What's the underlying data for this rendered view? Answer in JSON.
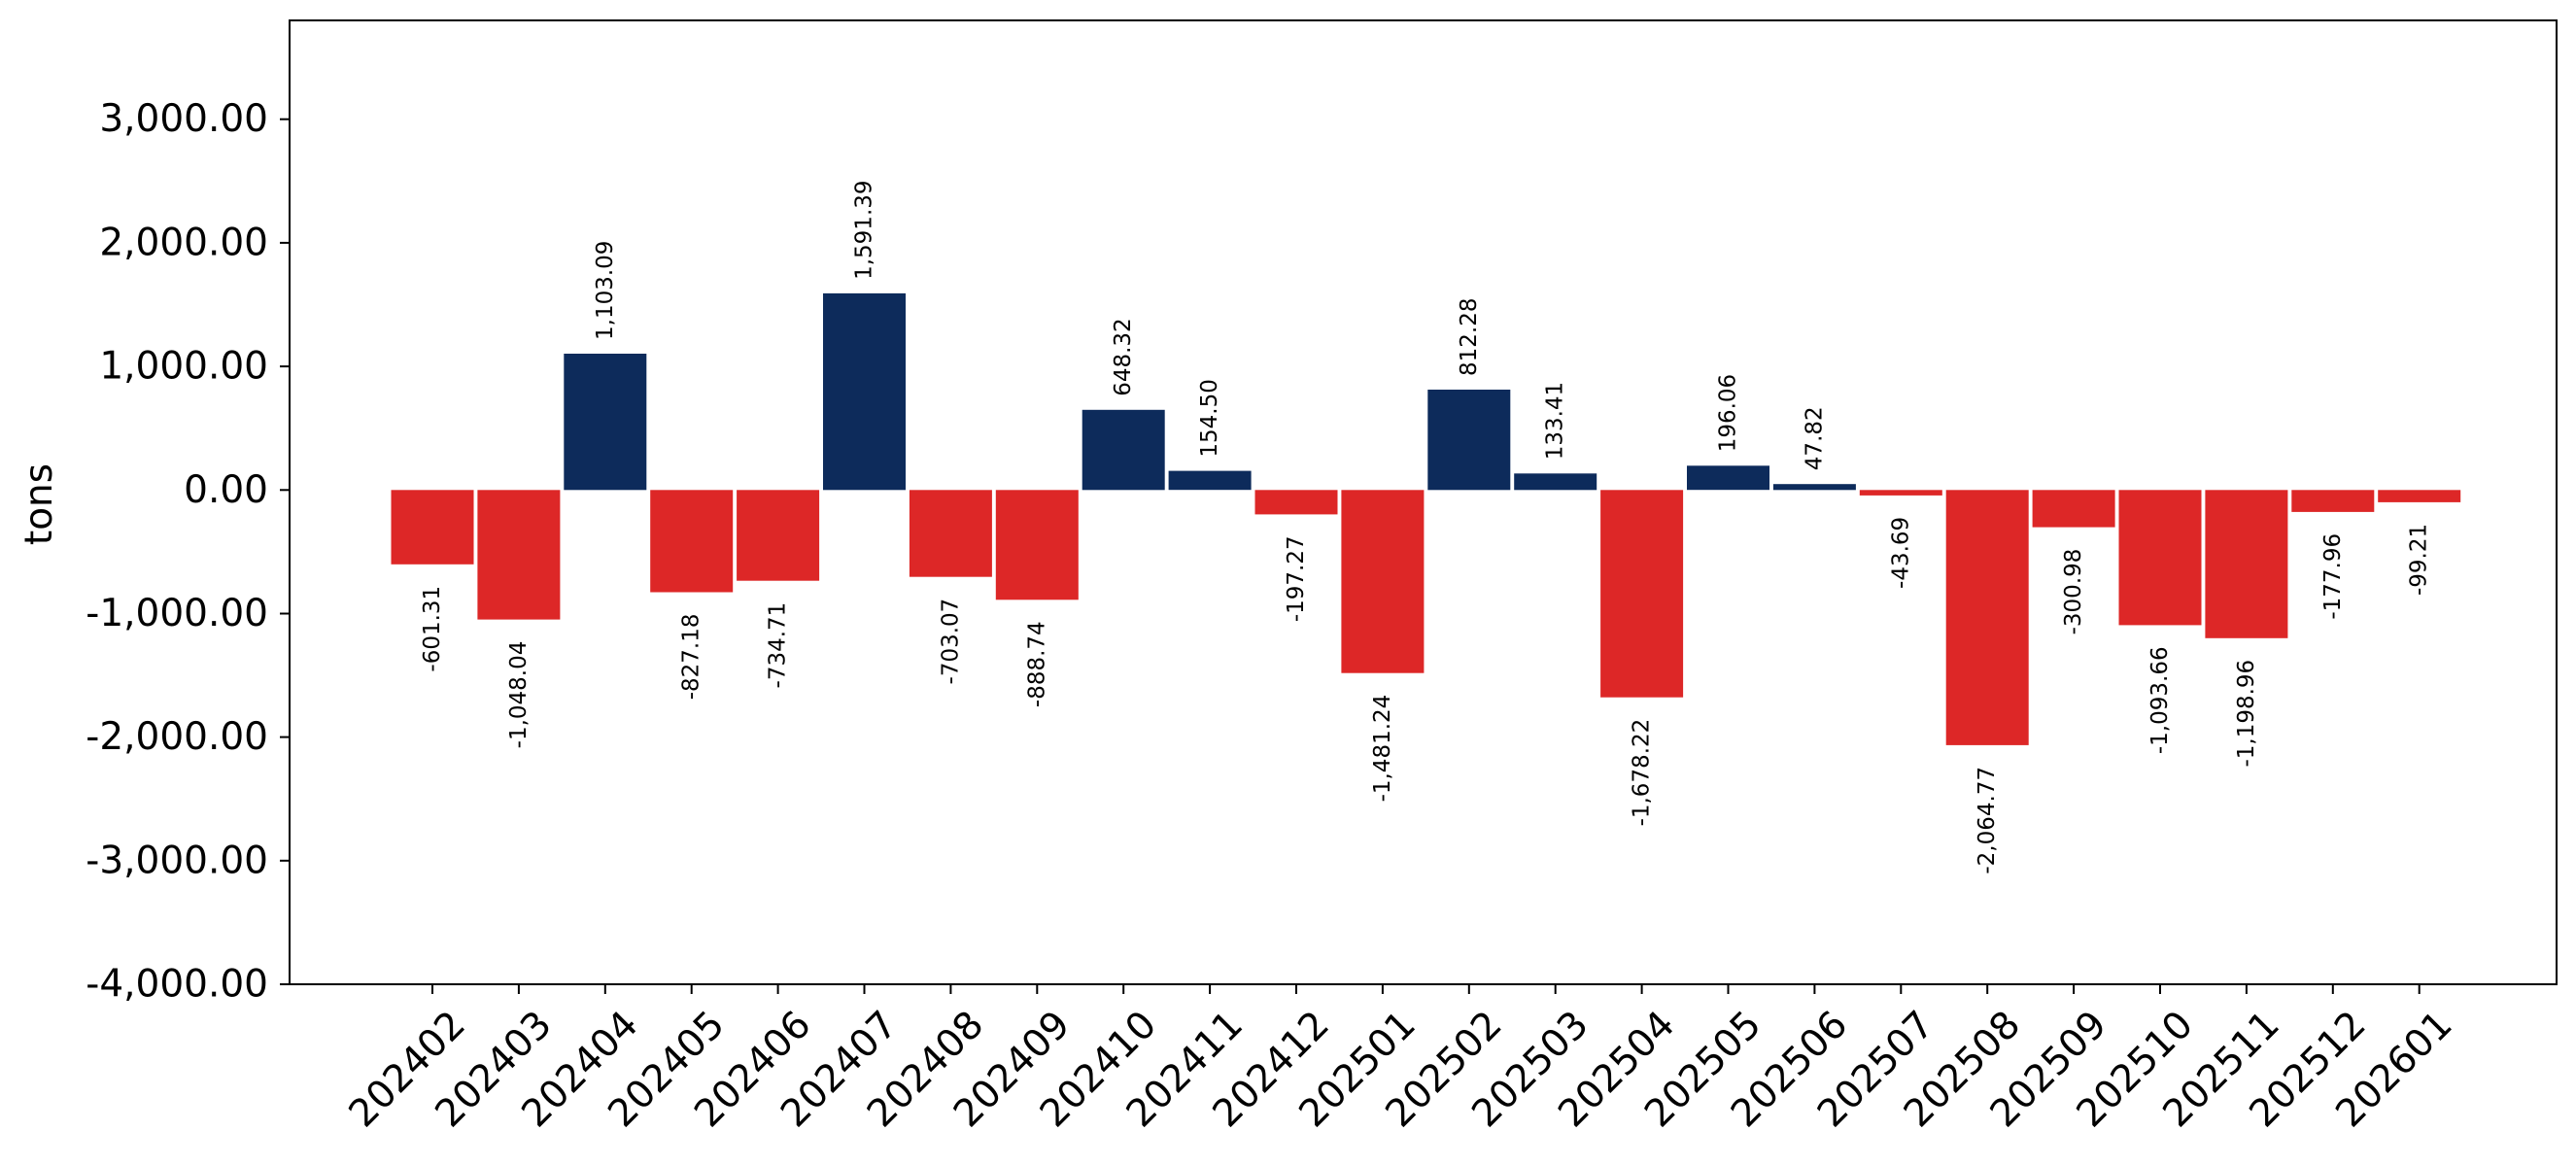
{
  "chart_data": {
    "type": "bar",
    "title": "",
    "xlabel": "",
    "ylabel": "tons",
    "ylim": [
      -4000,
      3800
    ],
    "yticks": [
      3000,
      2000,
      1000,
      0,
      -1000,
      -2000,
      -3000,
      -4000
    ],
    "ytick_labels": [
      "3,000.00",
      "2,000.00",
      "1,000.00",
      "0.00",
      "-1,000.00",
      "-2,000.00",
      "-3,000.00",
      "-4,000.00"
    ],
    "grid": false,
    "colors": {
      "positive": "#0d2b5b",
      "negative": "#dd2727"
    },
    "categories": [
      "202402",
      "202403",
      "202404",
      "202405",
      "202406",
      "202407",
      "202408",
      "202409",
      "202410",
      "202411",
      "202412",
      "202501",
      "202502",
      "202503",
      "202504",
      "202505",
      "202506",
      "202507",
      "202508",
      "202509",
      "202510",
      "202511",
      "202512",
      "202601"
    ],
    "values": [
      -601.31,
      -1048.04,
      1103.09,
      -827.18,
      -734.71,
      1591.39,
      -703.07,
      -888.74,
      648.32,
      154.5,
      -197.27,
      -1481.24,
      812.28,
      133.41,
      -1678.22,
      196.06,
      47.82,
      -43.69,
      -2064.77,
      -300.98,
      -1093.66,
      -1198.96,
      -177.96,
      -99.21
    ],
    "value_labels": [
      "-601.31",
      "-1,048.04",
      "1,103.09",
      "-827.18",
      "-734.71",
      "1,591.39",
      "-703.07",
      "-888.74",
      "648.32",
      "154.50",
      "-197.27",
      "-1,481.24",
      "812.28",
      "133.41",
      "-1,678.22",
      "196.06",
      "47.82",
      "-43.69",
      "-2,064.77",
      "-300.98",
      "-1,093.66",
      "-1,198.96",
      "-177.96",
      "-99.21"
    ]
  }
}
